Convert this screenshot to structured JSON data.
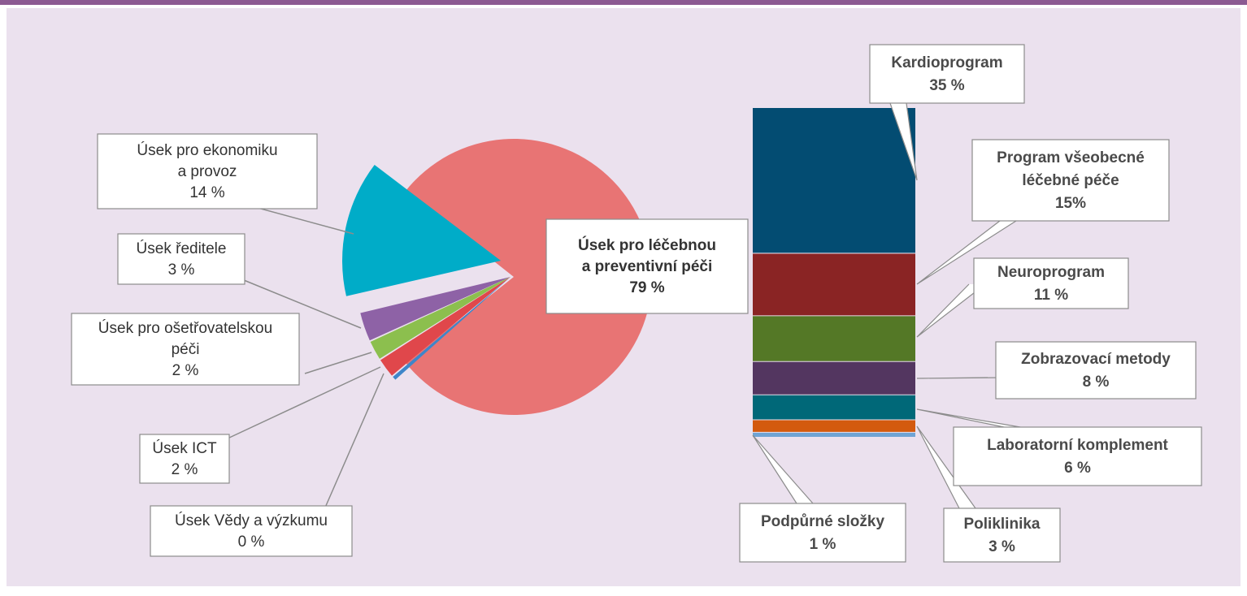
{
  "colors": {
    "background": "#EBE1EE",
    "top_border": "#8C5A92",
    "connector": "#8C8C8C"
  },
  "chart_data": [
    {
      "type": "pie",
      "note_exploded_slice": "Úsek pro ekonomiku a provoz",
      "slices": [
        {
          "label_lines": [
            "Úsek pro léčebnou",
            "a preventivní péči",
            "79 %"
          ],
          "value": 79,
          "color": "#E87474",
          "bold": true
        },
        {
          "label_lines": [
            "Úsek pro ekonomiku",
            "a provoz",
            "14 %"
          ],
          "value": 14,
          "color": "#00ACC8",
          "bold": false
        },
        {
          "label_lines": [
            "Úsek ředitele",
            "3 %"
          ],
          "value": 3,
          "color": "#8E62A6",
          "bold": false
        },
        {
          "label_lines": [
            "Úsek pro ošetřovatelskou",
            "péči",
            "2 %"
          ],
          "value": 2,
          "color": "#8CBF4E",
          "bold": false
        },
        {
          "label_lines": [
            "Úsek ICT",
            "2 %"
          ],
          "value": 2,
          "color": "#E0474B",
          "bold": false
        },
        {
          "label_lines": [
            "Úsek Vědy a výzkumu",
            "0 %"
          ],
          "value": 0.4,
          "color": "#3E86C9",
          "bold": false
        }
      ]
    },
    {
      "type": "bar",
      "stacked": true,
      "segments": [
        {
          "label_lines": [
            "Kardioprogram",
            "35 %"
          ],
          "value": 35,
          "color": "#034C72"
        },
        {
          "label_lines": [
            "Program všeobecné",
            "léčebné péče",
            "15%"
          ],
          "value": 15,
          "color": "#8A2424"
        },
        {
          "label_lines": [
            "Neuroprogram",
            "11 %"
          ],
          "value": 11,
          "color": "#547826"
        },
        {
          "label_lines": [
            "Zobrazovací metody",
            "8 %"
          ],
          "value": 8,
          "color": "#533660"
        },
        {
          "label_lines": [
            "Laboratorní komplement",
            "6 %"
          ],
          "value": 6,
          "color": "#006878"
        },
        {
          "label_lines": [
            "Poliklinika",
            "3 %"
          ],
          "value": 3,
          "color": "#D35A0E"
        },
        {
          "label_lines": [
            "Podpůrné složky",
            "1 %"
          ],
          "value": 1,
          "color": "#6FA4D4"
        }
      ]
    }
  ]
}
